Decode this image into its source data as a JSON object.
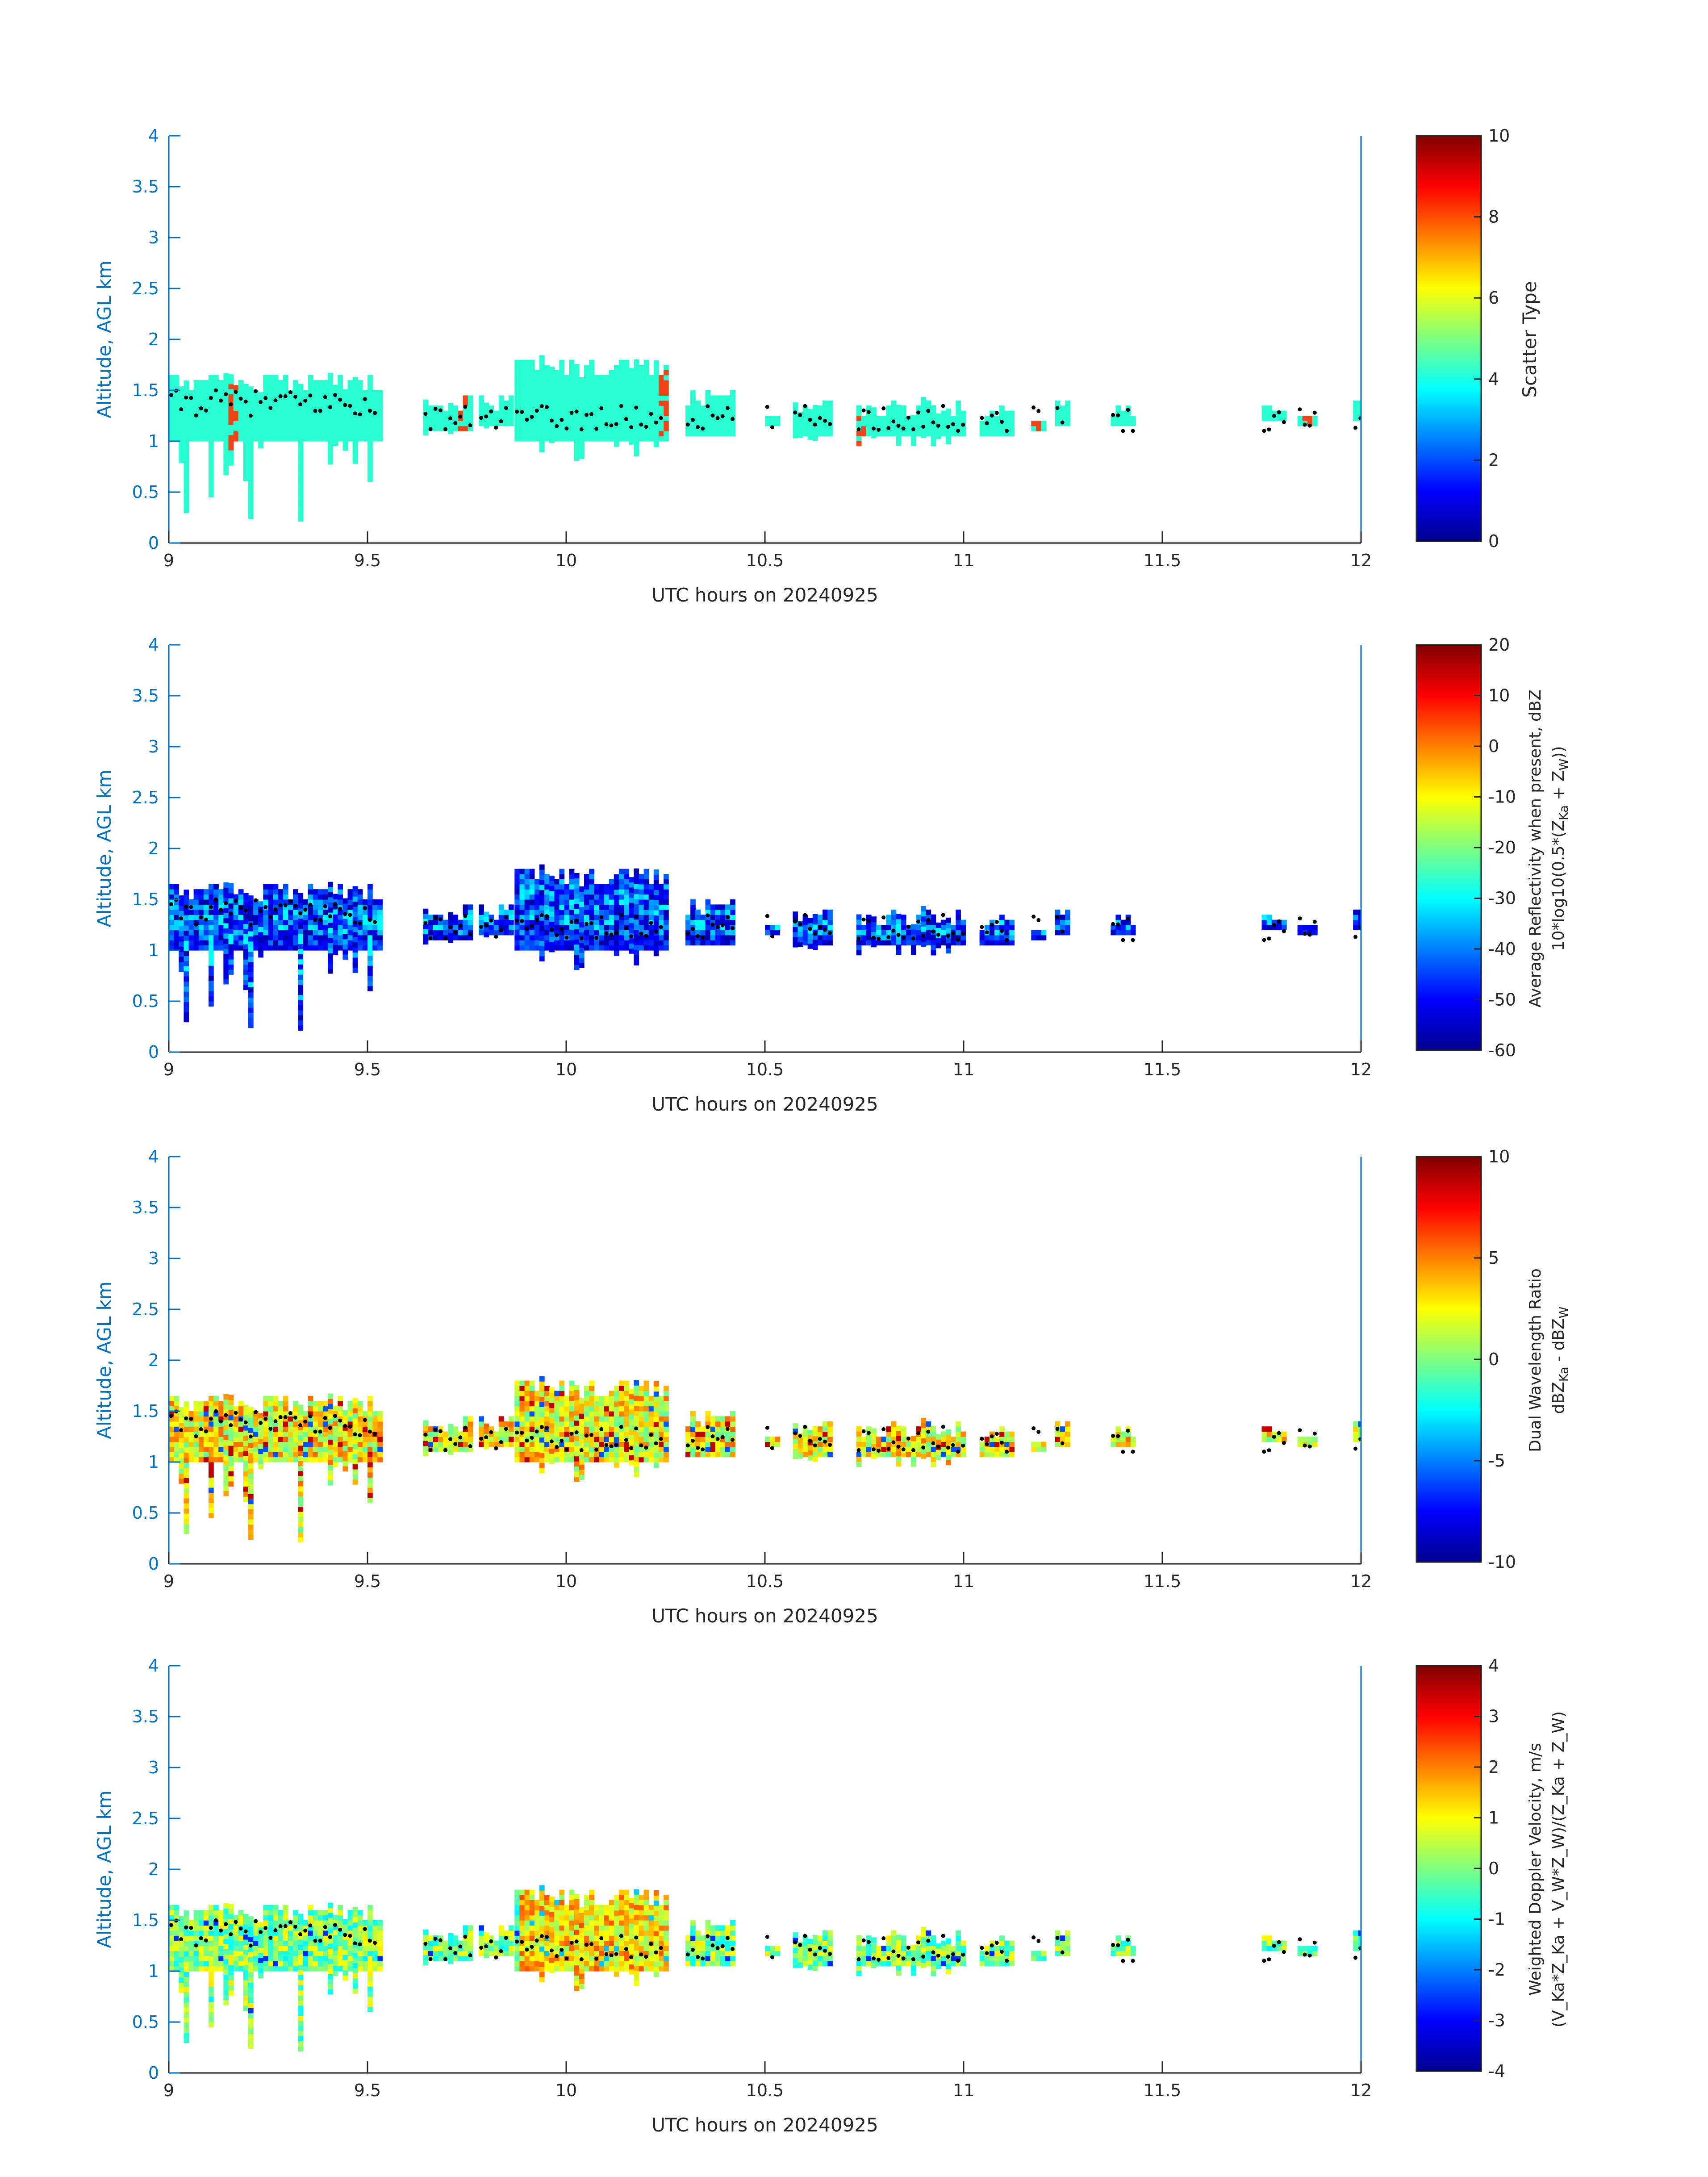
{
  "colors": {
    "axis_y": "#0072BD",
    "axis_x": "#262626",
    "frame_right": "#0072BD",
    "jet": [
      "#00008F",
      "#0000FF",
      "#00FFFF",
      "#FFFF00",
      "#FF0000",
      "#800000"
    ],
    "scatter_main": "#2AFFD2",
    "scatter_alt": "#F04418",
    "surface_dot": "#000000"
  },
  "chart_data": [
    {
      "type": "heatmap",
      "xlabel": "UTC hours on 20240925",
      "ylabel": "Altitude, AGL km",
      "xlim": [
        9,
        12
      ],
      "ylim": [
        0,
        4
      ],
      "xticks": [
        "9",
        "9.5",
        "10",
        "10.5",
        "11",
        "11.5",
        "12"
      ],
      "yticks": [
        "0",
        "0.5",
        "1",
        "1.5",
        "2",
        "2.5",
        "3",
        "3.5",
        "4"
      ],
      "colorbar": {
        "label_lines": [
          "Scatter Type"
        ],
        "clim": [
          0,
          10
        ],
        "ticks": [
          "0",
          "2",
          "4",
          "6",
          "8",
          "10"
        ]
      },
      "dominant_value": 4,
      "secondary_value": 8,
      "secondary_at_hours": [
        9.16,
        9.73,
        10.24,
        10.73,
        11.17,
        11.86
      ]
    },
    {
      "type": "heatmap",
      "xlabel": "UTC hours on 20240925",
      "ylabel": "Altitude, AGL km",
      "xlim": [
        9,
        12
      ],
      "ylim": [
        0,
        4
      ],
      "xticks": [
        "9",
        "9.5",
        "10",
        "10.5",
        "11",
        "11.5",
        "12"
      ],
      "yticks": [
        "0",
        "0.5",
        "1",
        "1.5",
        "2",
        "2.5",
        "3",
        "3.5",
        "4"
      ],
      "colorbar": {
        "label_lines": [
          "Average Reflectivity when present, dBZ",
          "10*log10(0.5*(Zₖₐ + Zᵥᵥ))"
        ],
        "label_line1": "Average Reflectivity when present, dBZ",
        "label_line2_prefix": "10*log10(0.5*(Z",
        "label_line2_sub1": "Ka",
        "label_line2_mid": " + Z",
        "label_line2_sub2": "W",
        "label_line2_suffix": "))",
        "clim": [
          -60,
          20
        ],
        "ticks": [
          "-60",
          "-50",
          "-40",
          "-30",
          "-20",
          "-10",
          "0",
          "10",
          "20"
        ]
      },
      "value_range_dbz": [
        -60,
        -30
      ]
    },
    {
      "type": "heatmap",
      "xlabel": "UTC hours on 20240925",
      "ylabel": "Altitude, AGL km",
      "xlim": [
        9,
        12
      ],
      "ylim": [
        0,
        4
      ],
      "xticks": [
        "9",
        "9.5",
        "10",
        "10.5",
        "11",
        "11.5",
        "12"
      ],
      "yticks": [
        "0",
        "0.5",
        "1",
        "1.5",
        "2",
        "2.5",
        "3",
        "3.5",
        "4"
      ],
      "colorbar": {
        "label_line1": "Dual Wavelength Ratio",
        "label_line2_prefix": "dBZ",
        "label_line2_sub1": "Ka",
        "label_line2_mid": " - dBZ",
        "label_line2_sub2": "W",
        "clim": [
          -10,
          10
        ],
        "ticks": [
          "-10",
          "-5",
          "0",
          "5",
          "10"
        ]
      },
      "value_range_db": [
        -4,
        10
      ]
    },
    {
      "type": "heatmap",
      "xlabel": "UTC hours on 20240925",
      "ylabel": "Altitude, AGL km",
      "xlim": [
        9,
        12
      ],
      "ylim": [
        0,
        4
      ],
      "xticks": [
        "9",
        "9.5",
        "10",
        "10.5",
        "11",
        "11.5",
        "12"
      ],
      "yticks": [
        "0",
        "0.5",
        "1",
        "1.5",
        "2",
        "2.5",
        "3",
        "3.5",
        "4"
      ],
      "colorbar": {
        "label_line1": "Weighted Doppler Velocity, m/s",
        "label_line2": "(V_Ka*Z_Ka + V_W*Z_W)/(Z_Ka + Z_W)",
        "clim": [
          -4,
          4
        ],
        "ticks": [
          "-4",
          "-3",
          "-2",
          "-1",
          "0",
          "1",
          "2",
          "3",
          "4"
        ]
      },
      "value_range_ms": [
        -2.5,
        3
      ]
    }
  ],
  "cloud_segments_hours": [
    {
      "t0": 9.0,
      "t1": 9.53,
      "base_km": 1.0,
      "top_km": 1.65,
      "min_base_km": 0.2
    },
    {
      "t0": 9.64,
      "t1": 9.76,
      "base_km": 1.1,
      "top_km": 1.45,
      "min_base_km": 1.05
    },
    {
      "t0": 9.78,
      "t1": 9.86,
      "base_km": 1.15,
      "top_km": 1.45,
      "min_base_km": 1.1
    },
    {
      "t0": 9.87,
      "t1": 10.25,
      "base_km": 1.0,
      "top_km": 1.8,
      "min_base_km": 0.8
    },
    {
      "t0": 10.3,
      "t1": 10.42,
      "base_km": 1.05,
      "top_km": 1.5,
      "min_base_km": 1.0
    },
    {
      "t0": 10.5,
      "t1": 10.53,
      "base_km": 1.15,
      "top_km": 1.3,
      "min_base_km": 1.15
    },
    {
      "t0": 10.57,
      "t1": 10.67,
      "base_km": 1.05,
      "top_km": 1.4,
      "min_base_km": 1.0
    },
    {
      "t0": 10.73,
      "t1": 11.0,
      "base_km": 1.05,
      "top_km": 1.4,
      "min_base_km": 0.95
    },
    {
      "t0": 11.04,
      "t1": 11.12,
      "base_km": 1.05,
      "top_km": 1.35,
      "min_base_km": 0.95
    },
    {
      "t0": 11.17,
      "t1": 11.2,
      "base_km": 1.1,
      "top_km": 1.2,
      "min_base_km": 1.1
    },
    {
      "t0": 11.23,
      "t1": 11.26,
      "base_km": 1.15,
      "top_km": 1.4,
      "min_base_km": 1.15
    },
    {
      "t0": 11.37,
      "t1": 11.43,
      "base_km": 1.15,
      "top_km": 1.4,
      "min_base_km": 1.15
    },
    {
      "t0": 11.75,
      "t1": 11.81,
      "base_km": 1.2,
      "top_km": 1.35,
      "min_base_km": 1.2
    },
    {
      "t0": 11.84,
      "t1": 11.89,
      "base_km": 1.15,
      "top_km": 1.35,
      "min_base_km": 1.15
    },
    {
      "t0": 11.98,
      "t1": 12.0,
      "base_km": 1.2,
      "top_km": 1.4,
      "min_base_km": 1.2
    }
  ]
}
